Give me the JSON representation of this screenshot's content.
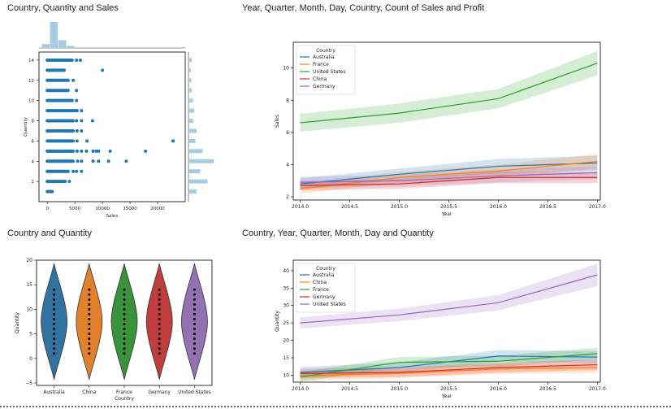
{
  "panels": {
    "jointplot_title": "Country, Quantity and Sales",
    "sales_title": "Year, Quarter, Month, Day, Country, Count of Sales and Profit",
    "violin_title": "Country and Quantity",
    "quantity_title": "Country, Year, Quarter, Month, Day and Quantity"
  },
  "chart_data": [
    {
      "type": "scatter",
      "xlabel": "Sales",
      "ylabel": "Quantity",
      "xlim": [
        -1500,
        25000
      ],
      "ylim": [
        0,
        14.8
      ],
      "xticks": [
        0,
        5000,
        10000,
        15000,
        20000
      ],
      "yticks": [
        2,
        4,
        6,
        8,
        10,
        12,
        14
      ],
      "rows": [
        {
          "y": 1,
          "max": 900,
          "extra": []
        },
        {
          "y": 2,
          "max": 3300,
          "extra": [
            4000
          ]
        },
        {
          "y": 3,
          "max": 3800,
          "extra": [
            4700,
            5300,
            6200
          ]
        },
        {
          "y": 4,
          "max": 4700,
          "extra": [
            5500,
            6200,
            8300,
            9300,
            11100,
            14300
          ]
        },
        {
          "y": 5,
          "max": 4800,
          "extra": [
            5400,
            6200,
            7100,
            8300,
            8900,
            9300,
            11400,
            17800
          ]
        },
        {
          "y": 6,
          "max": 4800,
          "extra": [
            5400,
            7200,
            22800
          ]
        },
        {
          "y": 7,
          "max": 4700,
          "extra": [
            5400,
            6200
          ]
        },
        {
          "y": 8,
          "max": 4800,
          "extra": [
            5300,
            6200,
            8200
          ]
        },
        {
          "y": 9,
          "max": 5400,
          "extra": [
            6200
          ]
        },
        {
          "y": 10,
          "max": 4500,
          "extra": [
            5300
          ]
        },
        {
          "y": 11,
          "max": 3800,
          "extra": [
            5300
          ]
        },
        {
          "y": 12,
          "max": 3800,
          "extra": [
            4700
          ]
        },
        {
          "y": 13,
          "max": 3200,
          "extra": [
            10000
          ]
        },
        {
          "y": 14,
          "max": 4500,
          "extra": [
            5300,
            6000
          ]
        }
      ],
      "marginal_y_counts": [
        0.3,
        0.75,
        0.45,
        1.0,
        0.55,
        0.25,
        0.3,
        0.15,
        0.2,
        0.15,
        0.1,
        0.08,
        0.06,
        0.1
      ],
      "marginal_x_counts": [
        0.15,
        1.0,
        0.3,
        0.08,
        0.03
      ]
    },
    {
      "type": "line",
      "xlabel": "Year",
      "ylabel": "Sales",
      "xlim": [
        2013.93,
        2017.03
      ],
      "ylim": [
        1.8,
        11.6
      ],
      "xticks": [
        2014.0,
        2014.5,
        2015.0,
        2015.5,
        2016.0,
        2016.5,
        2017.0
      ],
      "yticks": [
        2,
        4,
        6,
        8,
        10
      ],
      "legend_title": "Country",
      "legend_position": "top-left",
      "x": [
        2014,
        2015,
        2016,
        2017
      ],
      "series": [
        {
          "name": "Australia",
          "color": "#1f77b4",
          "values": [
            2.8,
            3.4,
            3.9,
            4.1
          ],
          "band": [
            0.35,
            0.35,
            0.45,
            0.45
          ]
        },
        {
          "name": "France",
          "color": "#ff7f0e",
          "values": [
            2.5,
            3.2,
            3.6,
            4.2
          ],
          "band": [
            0.3,
            0.35,
            0.4,
            0.45
          ]
        },
        {
          "name": "United States",
          "color": "#2ca02c",
          "values": [
            6.6,
            7.2,
            8.1,
            10.3
          ],
          "band": [
            0.55,
            0.6,
            0.6,
            0.75
          ]
        },
        {
          "name": "China",
          "color": "#d62728",
          "values": [
            2.7,
            2.8,
            3.2,
            3.2
          ],
          "band": [
            0.3,
            0.3,
            0.35,
            0.35
          ]
        },
        {
          "name": "Germany",
          "color": "#9467bd",
          "values": [
            2.9,
            3.0,
            3.3,
            3.5
          ],
          "band": [
            0.35,
            0.35,
            0.4,
            0.4
          ]
        }
      ]
    },
    {
      "type": "violin",
      "xlabel": "Country",
      "ylabel": "Quantity",
      "ylim": [
        -5.5,
        20
      ],
      "yticks": [
        -5,
        0,
        5,
        10,
        15,
        20
      ],
      "categories": [
        "Australia",
        "China",
        "France",
        "Germany",
        "United States"
      ],
      "colors": [
        "#3274a1",
        "#e1812c",
        "#3a923a",
        "#c03d3e",
        "#9372b2"
      ],
      "range": [
        1,
        14
      ]
    },
    {
      "type": "line",
      "xlabel": "Year",
      "ylabel": "Quantity",
      "xlim": [
        2013.93,
        2017.03
      ],
      "ylim": [
        8,
        43
      ],
      "xticks": [
        2014.0,
        2014.5,
        2015.0,
        2015.5,
        2016.0,
        2016.5,
        2017.0
      ],
      "yticks": [
        10,
        15,
        20,
        25,
        30,
        35,
        40
      ],
      "legend_title": "Country",
      "legend_position": "top-left",
      "x": [
        2014,
        2015,
        2016,
        2017
      ],
      "series": [
        {
          "name": "Australia",
          "color": "#1f77b4",
          "values": [
            10.8,
            12.2,
            15.5,
            15.2
          ],
          "band": [
            1.5,
            1.5,
            1.7,
            1.7
          ]
        },
        {
          "name": "China",
          "color": "#ff7f0e",
          "values": [
            9.8,
            10.5,
            11.8,
            12.2
          ],
          "band": [
            1.3,
            1.3,
            1.4,
            1.5
          ]
        },
        {
          "name": "France",
          "color": "#2ca02c",
          "values": [
            9.5,
            13.7,
            14.0,
            16.2
          ],
          "band": [
            1.4,
            1.5,
            1.6,
            1.7
          ]
        },
        {
          "name": "Germany",
          "color": "#d62728",
          "values": [
            10.5,
            10.8,
            12.2,
            13.0
          ],
          "band": [
            1.3,
            1.3,
            1.4,
            1.5
          ]
        },
        {
          "name": "United States",
          "color": "#9467bd",
          "values": [
            25.0,
            27.3,
            30.8,
            38.8
          ],
          "band": [
            1.6,
            1.8,
            2.2,
            3.2
          ]
        }
      ]
    }
  ]
}
